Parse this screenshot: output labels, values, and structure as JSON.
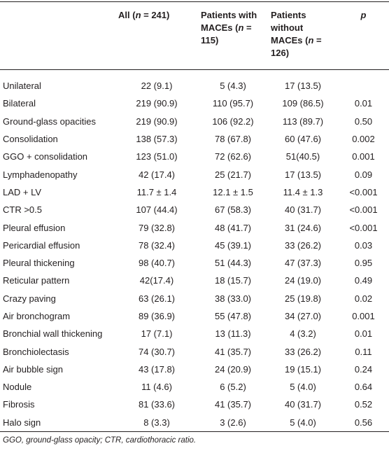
{
  "table": {
    "header": [
      {
        "parts": []
      },
      {
        "parts": [
          "All (",
          "n",
          " = 241)"
        ]
      },
      {
        "parts": [
          "Patients with MACEs (",
          "n",
          " = 115)"
        ]
      },
      {
        "parts": [
          "Patients without MACEs (",
          "n",
          " = 126)"
        ]
      },
      {
        "parts": [
          "",
          "p",
          ""
        ]
      }
    ],
    "rows": [
      [
        "Unilateral",
        "22 (9.1)",
        "5 (4.3)",
        "17 (13.5)",
        ""
      ],
      [
        "Bilateral",
        "219 (90.9)",
        "110 (95.7)",
        "109 (86.5)",
        "0.01"
      ],
      [
        "Ground-glass opacities",
        "219 (90.9)",
        "106 (92.2)",
        "113 (89.7)",
        "0.50"
      ],
      [
        "Consolidation",
        "138 (57.3)",
        "78 (67.8)",
        "60 (47.6)",
        "0.002"
      ],
      [
        "GGO + consolidation",
        "123 (51.0)",
        "72 (62.6)",
        "51(40.5)",
        "0.001"
      ],
      [
        "Lymphadenopathy",
        "42 (17.4)",
        "25 (21.7)",
        "17 (13.5)",
        "0.09"
      ],
      [
        "LAD + LV",
        "11.7 ± 1.4",
        "12.1 ± 1.5",
        "11.4 ± 1.3",
        "<0.001"
      ],
      [
        "CTR >0.5",
        "107 (44.4)",
        "67 (58.3)",
        "40 (31.7)",
        "<0.001"
      ],
      [
        "Pleural effusion",
        "79 (32.8)",
        "48 (41.7)",
        "31 (24.6)",
        "<0.001"
      ],
      [
        "Pericardial effusion",
        "78 (32.4)",
        "45 (39.1)",
        "33 (26.2)",
        "0.03"
      ],
      [
        "Pleural thickening",
        "98 (40.7)",
        "51 (44.3)",
        "47 (37.3)",
        "0.95"
      ],
      [
        "Reticular pattern",
        "42(17.4)",
        "18 (15.7)",
        "24 (19.0)",
        "0.49"
      ],
      [
        "Crazy paving",
        "63 (26.1)",
        "38 (33.0)",
        "25 (19.8)",
        "0.02"
      ],
      [
        "Air bronchogram",
        "89 (36.9)",
        "55 (47.8)",
        "34 (27.0)",
        "0.001"
      ],
      [
        "Bronchial wall thickening",
        "17 (7.1)",
        "13 (11.3)",
        "4 (3.2)",
        "0.01"
      ],
      [
        "Bronchiolectasis",
        "74 (30.7)",
        "41 (35.7)",
        "33 (26.2)",
        "0.11"
      ],
      [
        "Air bubble sign",
        "43 (17.8)",
        "24 (20.9)",
        "19 (15.1)",
        "0.24"
      ],
      [
        "Nodule",
        "11 (4.6)",
        "6 (5.2)",
        "5 (4.0)",
        "0.64"
      ],
      [
        "Fibrosis",
        "81 (33.6)",
        "41 (35.7)",
        "40 (31.7)",
        "0.52"
      ],
      [
        "Halo sign",
        "8 (3.3)",
        "3 (2.6)",
        "5 (4.0)",
        "0.56"
      ]
    ],
    "footnote": "GGO, ground-glass opacity; CTR, cardiothoracic ratio."
  }
}
